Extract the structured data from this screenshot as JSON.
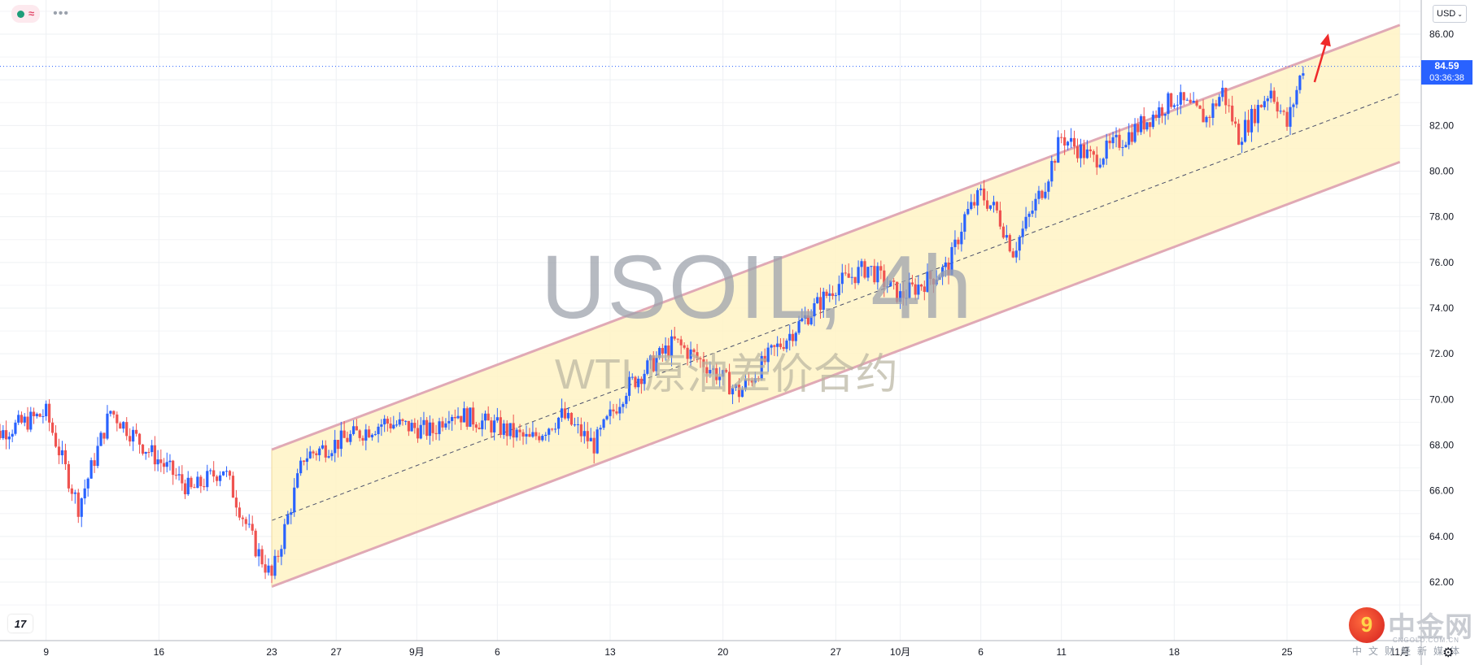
{
  "chart_data": {
    "type": "candlestick",
    "title": "USOIL, 4h",
    "subtitle": "WTI 原油差价合约",
    "currency": "USD",
    "last_price": "84.59",
    "countdown": "03:36:38",
    "y_range": [
      60.8,
      86.8
    ],
    "y_ticks": [
      "62.00",
      "64.00",
      "66.00",
      "68.00",
      "70.00",
      "72.00",
      "74.00",
      "76.00",
      "78.00",
      "80.00",
      "82.00",
      "84.00",
      "86.00"
    ],
    "x_ticks": [
      "9",
      "16",
      "23",
      "27",
      "9月",
      "6",
      "13",
      "20",
      "27",
      "10月",
      "6",
      "11",
      "18",
      "25",
      "11月"
    ],
    "grid": true,
    "channel_upper": [
      {
        "x": "23",
        "y": 67.8
      },
      {
        "x": "Nov 1",
        "y": 86.4
      }
    ],
    "channel_lower": [
      {
        "x": "23",
        "y": 61.8
      },
      {
        "x": "Nov 1",
        "y": 80.4
      }
    ],
    "channel_mid": [
      {
        "x": "23",
        "y": 64.7
      },
      {
        "x": "Nov 1",
        "y": 83.4
      }
    ],
    "segments": [
      {
        "from": "Aug 5",
        "to": "Aug 9",
        "start": 68.2,
        "end": 69.4
      },
      {
        "from": "Aug 9",
        "to": "Aug 11",
        "start": 69.4,
        "end": 65.3
      },
      {
        "from": "Aug 11",
        "to": "Aug 13",
        "start": 65.3,
        "end": 69.5
      },
      {
        "from": "Aug 13",
        "to": "Aug 15",
        "start": 69.5,
        "end": 68.0
      },
      {
        "from": "Aug 15",
        "to": "Aug 18",
        "start": 68.0,
        "end": 66.0
      },
      {
        "from": "Aug 18",
        "to": "Aug 20",
        "start": 66.0,
        "end": 67.0
      },
      {
        "from": "Aug 20",
        "to": "Aug 22",
        "start": 67.0,
        "end": 63.5
      },
      {
        "from": "Aug 22",
        "to": "Aug 23",
        "start": 63.5,
        "end": 62.2
      },
      {
        "from": "Aug 23",
        "to": "Aug 25",
        "start": 62.2,
        "end": 67.5
      },
      {
        "from": "Aug 25",
        "to": "Aug 30",
        "start": 67.5,
        "end": 69.0
      },
      {
        "from": "Aug 30",
        "to": "Sep 2",
        "start": 69.0,
        "end": 68.6
      },
      {
        "from": "Sep 2",
        "to": "Sep 3",
        "start": 68.6,
        "end": 69.5
      },
      {
        "from": "Sep 3",
        "to": "Sep 6",
        "start": 69.5,
        "end": 68.8
      },
      {
        "from": "Sep 6",
        "to": "Sep 8",
        "start": 68.8,
        "end": 68.2
      },
      {
        "from": "Sep 8",
        "to": "Sep 10",
        "start": 68.2,
        "end": 69.3
      },
      {
        "from": "Sep 10",
        "to": "Sep 12",
        "start": 69.3,
        "end": 68.0
      },
      {
        "from": "Sep 12",
        "to": "Sep 14",
        "start": 68.0,
        "end": 70.5
      },
      {
        "from": "Sep 14",
        "to": "Sep 17",
        "start": 70.5,
        "end": 72.5
      },
      {
        "from": "Sep 17",
        "to": "Sep 19",
        "start": 72.5,
        "end": 71.5
      },
      {
        "from": "Sep 19",
        "to": "Sep 21",
        "start": 71.5,
        "end": 70.3
      },
      {
        "from": "Sep 21",
        "to": "Sep 23",
        "start": 70.3,
        "end": 72.0
      },
      {
        "from": "Sep 23",
        "to": "Sep 27",
        "start": 72.0,
        "end": 75.0
      },
      {
        "from": "Sep 27",
        "to": "Sep 29",
        "start": 75.0,
        "end": 75.8
      },
      {
        "from": "Sep 29",
        "to": "Oct 1",
        "start": 75.8,
        "end": 74.5
      },
      {
        "from": "Oct 1",
        "to": "Oct 4",
        "start": 74.5,
        "end": 75.8
      },
      {
        "from": "Oct 4",
        "to": "Oct 5",
        "start": 75.8,
        "end": 78.0
      },
      {
        "from": "Oct 5",
        "to": "Oct 6",
        "start": 78.0,
        "end": 79.0
      },
      {
        "from": "Oct 6",
        "to": "Oct 7",
        "start": 79.0,
        "end": 78.2
      },
      {
        "from": "Oct 7",
        "to": "Oct 8",
        "start": 78.2,
        "end": 76.5
      },
      {
        "from": "Oct 8",
        "to": "Oct 10",
        "start": 76.5,
        "end": 79.5
      },
      {
        "from": "Oct 10",
        "to": "Oct 11",
        "start": 79.5,
        "end": 81.5
      },
      {
        "from": "Oct 11",
        "to": "Oct 13",
        "start": 81.5,
        "end": 80.5
      },
      {
        "from": "Oct 13",
        "to": "Oct 15",
        "start": 80.5,
        "end": 81.5
      },
      {
        "from": "Oct 15",
        "to": "Oct 18",
        "start": 81.5,
        "end": 83.2
      },
      {
        "from": "Oct 18",
        "to": "Oct 20",
        "start": 83.2,
        "end": 82.3
      },
      {
        "from": "Oct 20",
        "to": "Oct 21",
        "start": 82.3,
        "end": 83.5
      },
      {
        "from": "Oct 21",
        "to": "Oct 22",
        "start": 83.5,
        "end": 81.5
      },
      {
        "from": "Oct 22",
        "to": "Oct 24",
        "start": 81.5,
        "end": 83.6
      },
      {
        "from": "Oct 24",
        "to": "Oct 25",
        "start": 83.6,
        "end": 82.0
      },
      {
        "from": "Oct 25",
        "to": "Oct 26",
        "start": 82.0,
        "end": 84.6
      }
    ]
  },
  "ui": {
    "currency_selector": "USD",
    "brand_name": "中金网",
    "brand_url": "CNGOLD.COM.CN",
    "brand_tagline": "中文财经新媒体",
    "colors": {
      "up": "#2962ff",
      "down": "#ef5350",
      "channel_fill": "#fff3c4",
      "channel_line": "#e0a9b5",
      "price_line": "#2962ff",
      "arrow": "#ef2b2b"
    }
  }
}
